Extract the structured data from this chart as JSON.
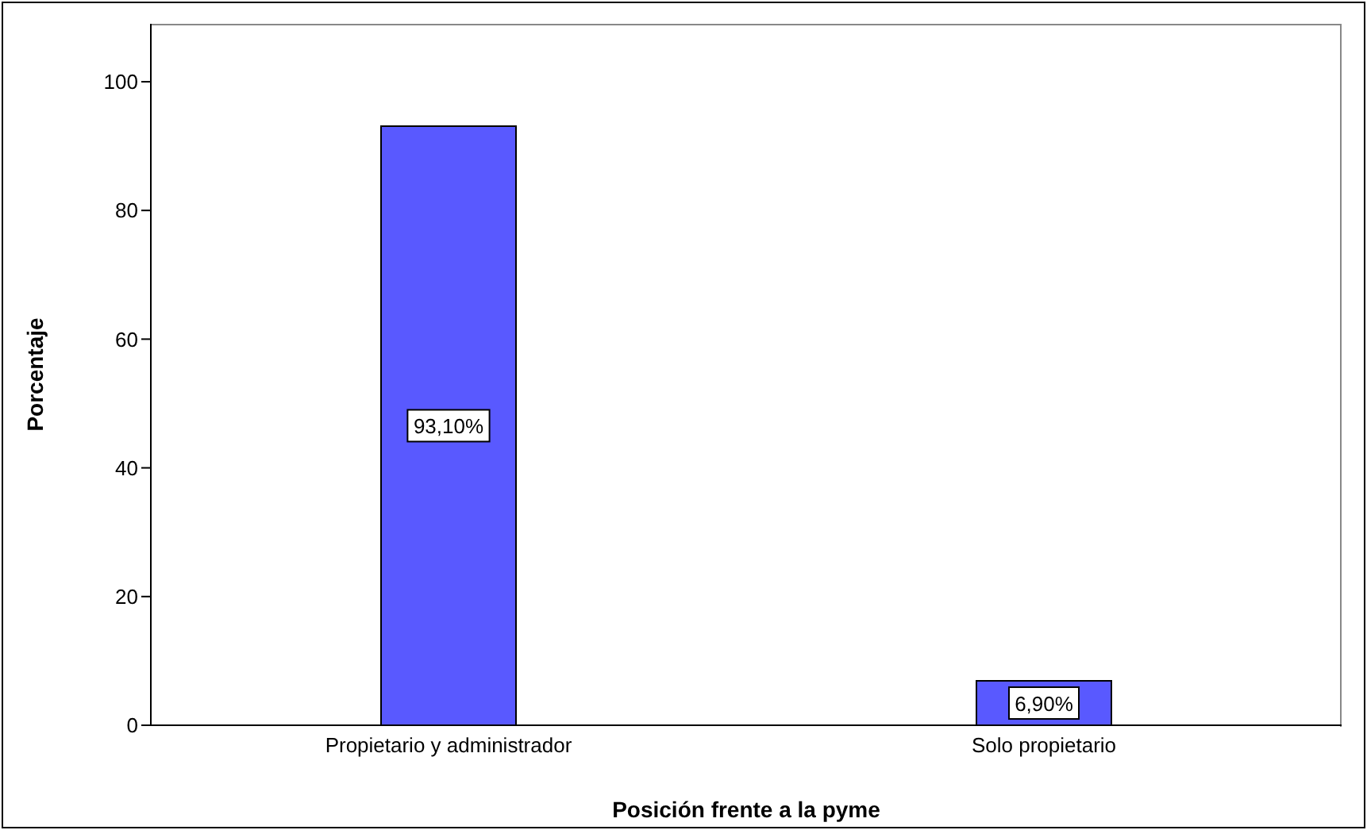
{
  "chart_data": {
    "type": "bar",
    "xlabel": "Posición frente a la pyme",
    "ylabel": "Porcentaje",
    "categories": [
      "Propietario y administrador",
      "Solo propietario"
    ],
    "values": [
      93.1,
      6.9
    ],
    "value_labels": [
      "93,10%",
      "6,90%"
    ],
    "color": "#5959ff",
    "ylim": [
      0,
      109
    ],
    "yticks": [
      0,
      20,
      40,
      60,
      80,
      100
    ],
    "grid": false,
    "legend": false
  }
}
